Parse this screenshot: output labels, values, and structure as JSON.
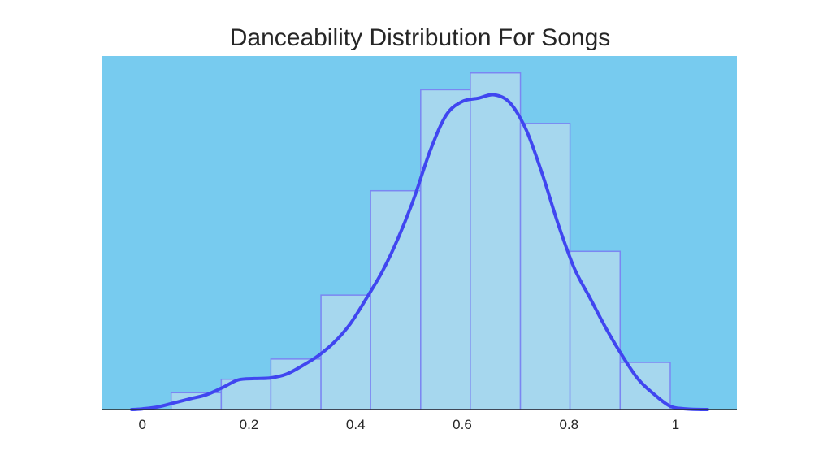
{
  "chart_data": {
    "type": "bar",
    "title": "Danceability Distribution For Songs",
    "xlabel": "",
    "ylabel": "",
    "xlim": [
      -0.075,
      1.115
    ],
    "ylim": [
      0,
      1.05
    ],
    "xticks": [
      0,
      0.2,
      0.4,
      0.6,
      0.8,
      1
    ],
    "xtick_labels": [
      "0",
      "0.2",
      "0.4",
      "0.6",
      "0.8",
      "1"
    ],
    "grid": false,
    "legend": "none",
    "histogram": {
      "bin_edges": [
        0.054,
        0.148,
        0.241,
        0.335,
        0.428,
        0.522,
        0.615,
        0.709,
        0.802,
        0.896,
        0.99
      ],
      "values": [
        0.05,
        0.09,
        0.15,
        0.34,
        0.65,
        0.95,
        1.0,
        0.85,
        0.47,
        0.14
      ]
    },
    "kde": {
      "x": [
        -0.02,
        0.0,
        0.03,
        0.06,
        0.09,
        0.12,
        0.15,
        0.18,
        0.21,
        0.24,
        0.27,
        0.3,
        0.33,
        0.36,
        0.39,
        0.42,
        0.45,
        0.48,
        0.51,
        0.54,
        0.57,
        0.6,
        0.63,
        0.66,
        0.69,
        0.72,
        0.75,
        0.78,
        0.81,
        0.84,
        0.87,
        0.9,
        0.93,
        0.96,
        0.99,
        1.02,
        1.06
      ],
      "y": [
        0.0,
        0.002,
        0.008,
        0.02,
        0.032,
        0.044,
        0.065,
        0.088,
        0.092,
        0.094,
        0.105,
        0.13,
        0.16,
        0.2,
        0.255,
        0.33,
        0.41,
        0.51,
        0.63,
        0.77,
        0.875,
        0.915,
        0.925,
        0.935,
        0.91,
        0.83,
        0.7,
        0.55,
        0.42,
        0.33,
        0.24,
        0.16,
        0.09,
        0.045,
        0.01,
        0.002,
        0.0
      ]
    },
    "colors": {
      "plot_background": "#77cbef",
      "bar_fill": "#a6d7ee",
      "bar_edge": "#7b86f2",
      "kde_line": "#4046f0",
      "axis": "#262626"
    }
  }
}
